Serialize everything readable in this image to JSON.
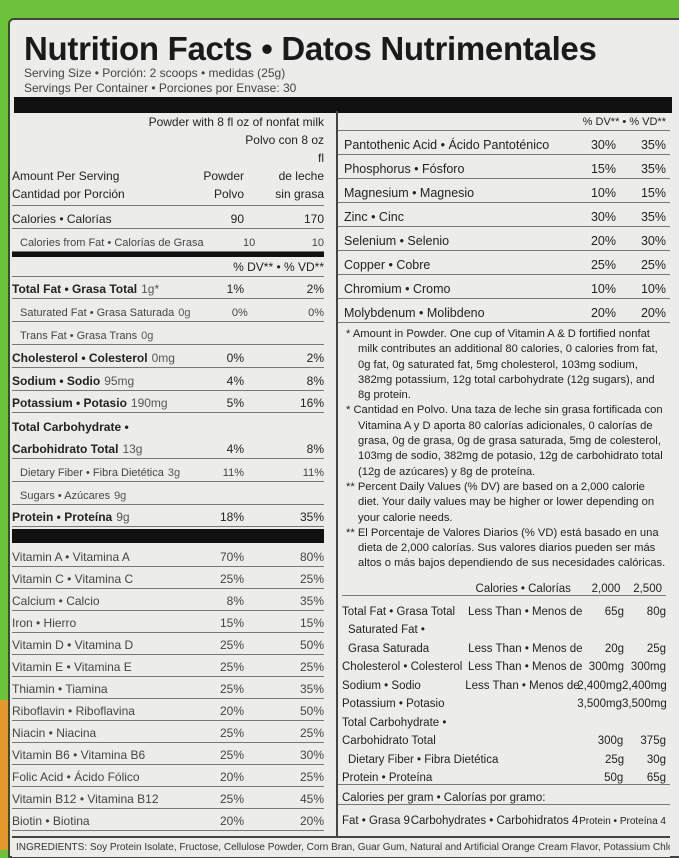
{
  "title": "Nutrition Facts • Datos Nutrimentales",
  "serving_size": "Serving Size • Porción: 2 scoops • medidas (25g)",
  "servings_per_container": "Servings Per Container • Porciones por Envase: 30",
  "header": {
    "with_milk_en": "Powder with 8 fl oz of nonfat milk",
    "with_milk_es1": "Polvo con 8 oz fl",
    "powder": "Powder",
    "polvo": "Polvo",
    "de_leche": "de leche",
    "sin_grasa": "sin grasa",
    "amount_en": "Amount Per Serving",
    "amount_es": "Cantidad por Porción",
    "dv": "% DV** • % VD**"
  },
  "calories": [
    {
      "name": "Calories • Calorías",
      "a": "90",
      "b": "170"
    },
    {
      "name": "Calories from Fat • Calorías de Grasa",
      "a": "10",
      "b": "10"
    }
  ],
  "nutrients": [
    {
      "name": "Total Fat • Grasa Total",
      "amt": "1g*",
      "a": "1%",
      "b": "2%"
    },
    {
      "name": "Saturated Fat • Grasa Saturada",
      "amt": "0g",
      "a": "0%",
      "b": "0%"
    },
    {
      "name": "Trans Fat • Grasa Trans",
      "amt": "0g",
      "a": "",
      "b": ""
    },
    {
      "name": "Cholesterol • Colesterol",
      "amt": "0mg",
      "a": "0%",
      "b": "2%"
    },
    {
      "name": "Sodium • Sodio",
      "amt": "95mg",
      "a": "4%",
      "b": "8%"
    },
    {
      "name": "Potassium • Potasio",
      "amt": "190mg",
      "a": "5%",
      "b": "16%"
    },
    {
      "name": "Total Carbohydrate •",
      "amt": "",
      "a": "",
      "b": ""
    },
    {
      "name": "Carbohidrato Total",
      "amt": "13g",
      "a": "4%",
      "b": "8%"
    },
    {
      "name": "Dietary Fiber • Fibra Dietética",
      "amt": "3g",
      "a": "11%",
      "b": "11%"
    },
    {
      "name": "Sugars • Azúcares",
      "amt": "9g",
      "a": "",
      "b": ""
    },
    {
      "name": "Protein • Proteína",
      "amt": "9g",
      "a": "18%",
      "b": "35%"
    }
  ],
  "vitamins": [
    {
      "name": "Vitamin A • Vitamina A",
      "a": "70%",
      "b": "80%"
    },
    {
      "name": "Vitamin C • Vitamina C",
      "a": "25%",
      "b": "25%"
    },
    {
      "name": "Calcium • Calcio",
      "a": "8%",
      "b": "35%"
    },
    {
      "name": "Iron • Hierro",
      "a": "15%",
      "b": "15%"
    },
    {
      "name": "Vitamin D • Vitamina D",
      "a": "25%",
      "b": "50%"
    },
    {
      "name": "Vitamin E • Vitamina E",
      "a": "25%",
      "b": "25%"
    },
    {
      "name": "Thiamin • Tiamina",
      "a": "25%",
      "b": "35%"
    },
    {
      "name": "Riboflavin • Riboflavina",
      "a": "20%",
      "b": "50%"
    },
    {
      "name": "Niacin • Niacina",
      "a": "25%",
      "b": "25%"
    },
    {
      "name": "Vitamin B6 • Vitamina B6",
      "a": "25%",
      "b": "30%"
    },
    {
      "name": "Folic Acid • Ácido Fólico",
      "a": "20%",
      "b": "25%"
    },
    {
      "name": "Vitamin B12 • Vitamina B12",
      "a": "25%",
      "b": "45%"
    },
    {
      "name": "Biotin • Biotina",
      "a": "20%",
      "b": "20%"
    }
  ],
  "minerals_header": "% DV** • % VD**",
  "minerals": [
    {
      "name": "Pantothenic Acid • Ácido Pantoténico",
      "a": "30%",
      "b": "35%"
    },
    {
      "name": "Phosphorus • Fósforo",
      "a": "15%",
      "b": "35%"
    },
    {
      "name": "Magnesium • Magnesio",
      "a": "10%",
      "b": "15%"
    },
    {
      "name": "Zinc • Cinc",
      "a": "30%",
      "b": "35%"
    },
    {
      "name": "Selenium • Selenio",
      "a": "20%",
      "b": "30%"
    },
    {
      "name": "Copper • Cobre",
      "a": "25%",
      "b": "25%"
    },
    {
      "name": "Chromium • Cromo",
      "a": "10%",
      "b": "10%"
    },
    {
      "name": "Molybdenum • Molibdeno",
      "a": "20%",
      "b": "20%"
    }
  ],
  "footnotes": [
    "* Amount in Powder. One cup of Vitamin A & D fortified nonfat milk contributes an additional 80 calories, 0 calories from fat, 0g fat, 0g saturated fat, 5mg cholesterol, 103mg sodium, 382mg potassium, 12g total carbohydrate (12g sugars), and 8g protein.",
    "* Cantidad en Polvo. Una taza de leche sin grasa fortificada con Vitamina A y D aporta 80 calorías adicionales, 0 calorías de grasa, 0g de grasa, 0g de grasa saturada, 5mg de colesterol, 103mg de sodio, 382mg de potasio, 12g de carbohidrato total (12g de azúcares) y 8g de proteína.",
    "** Percent Daily Values (% DV) are based on a 2,000 calorie diet. Your daily values may be higher or lower depending on your calorie needs.",
    "** El Porcentaje de Valores Diarios (% VD) está basado en una dieta de 2,000 calorías. Sus valores diarios pueden ser más altos o más bajos dependiendo de sus necesidades calóricas."
  ],
  "dv_table": {
    "header": {
      "label": "Calories • Calorías",
      "a": "2,000",
      "b": "2,500"
    },
    "rows": [
      {
        "n": "Total Fat • Grasa Total",
        "l": "Less Than • Menos de",
        "a": "65g",
        "b": "80g"
      },
      {
        "n": "  Saturated Fat •",
        "l": "",
        "a": "",
        "b": ""
      },
      {
        "n": "  Grasa Saturada",
        "l": "Less Than • Menos de",
        "a": "20g",
        "b": "25g"
      },
      {
        "n": "Cholesterol • Colesterol",
        "l": "Less Than • Menos de",
        "a": "300mg",
        "b": "300mg"
      },
      {
        "n": "Sodium • Sodio",
        "l": "Less Than • Menos de",
        "a": "2,400mg",
        "b": "2,400mg"
      },
      {
        "n": "Potassium • Potasio",
        "l": "",
        "a": "3,500mg",
        "b": "3,500mg"
      },
      {
        "n": "Total Carbohydrate •",
        "l": "",
        "a": "",
        "b": ""
      },
      {
        "n": "Carbohidrato Total",
        "l": "",
        "a": "300g",
        "b": "375g"
      },
      {
        "n": "  Dietary Fiber • Fibra Dietética",
        "l": "",
        "a": "25g",
        "b": "30g"
      },
      {
        "n": "Protein • Proteína",
        "l": "",
        "a": "50g",
        "b": "65g"
      }
    ],
    "cal_per_gram": "Calories per gram • Calorías por gramo:",
    "fat": "Fat • Grasa 9",
    "carb": "Carbohydrates • Carbohidratos 4",
    "protein": "Protein • Proteína 4"
  },
  "ingredients": "INGREDIENTS: Soy Protein Isolate, Fructose, Cellulose Powder, Corn Bran, Guar Gum, Natural and Artificial Orange Cream Flavor, Potassium Chloride, Calcium"
}
